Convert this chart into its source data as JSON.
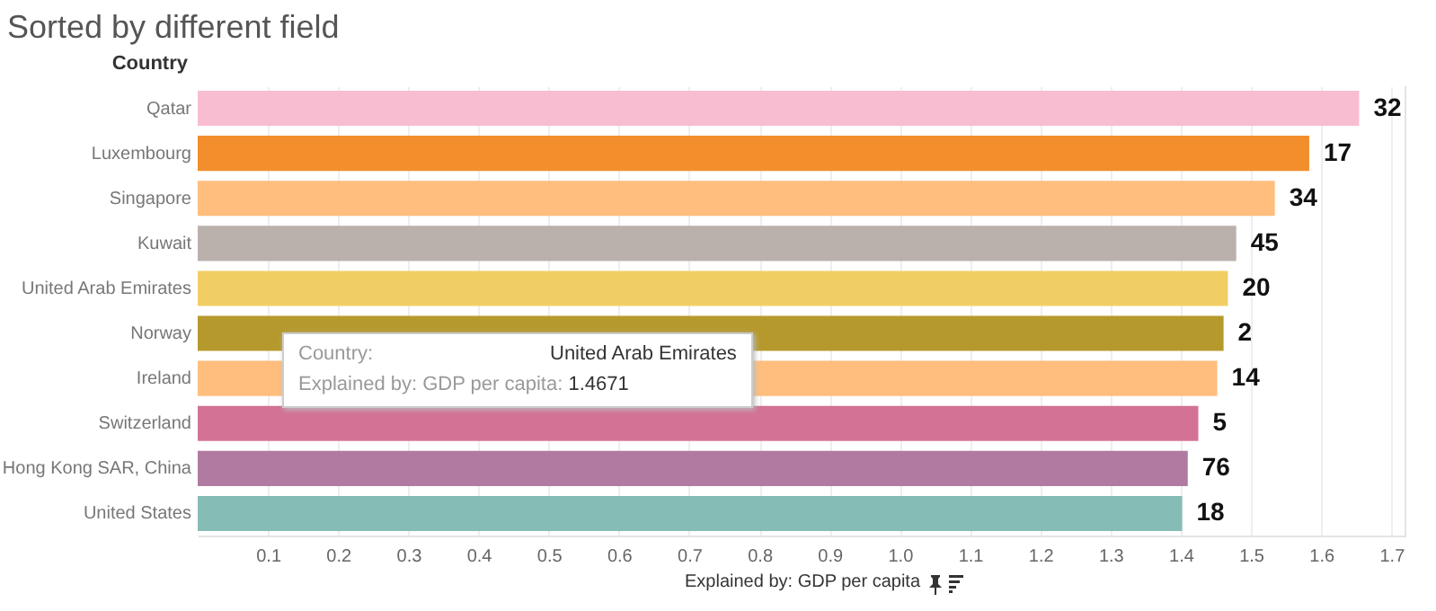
{
  "chart_data": {
    "type": "bar",
    "orientation": "horizontal",
    "title": "Sorted by different field",
    "ylabel": "Country",
    "xlabel": "Explained by: GDP per capita",
    "categories": [
      "Qatar",
      "Luxembourg",
      "Singapore",
      "Kuwait",
      "United Arab Emirates",
      "Norway",
      "Ireland",
      "Switzerland",
      "Hong Kong SAR, China",
      "United States"
    ],
    "values": [
      1.654,
      1.583,
      1.534,
      1.479,
      1.4671,
      1.461,
      1.452,
      1.425,
      1.41,
      1.402
    ],
    "colors": [
      "#f9bdd2",
      "#f28e2b",
      "#ffbe7d",
      "#bab0ac",
      "#f1ce63",
      "#b6992d",
      "#ffbe7d",
      "#d37295",
      "#b07aa1",
      "#86bcb6"
    ],
    "xlim": [
      0,
      1.72
    ],
    "xticks": [
      0.1,
      0.2,
      0.3,
      0.4,
      0.5,
      0.6,
      0.7,
      0.8,
      0.9,
      {
        "value": 1,
        "label": "1.0"
      },
      1.1,
      1.2,
      1.3,
      1.4,
      1.5,
      1.6,
      1.7
    ],
    "grid": "x",
    "legend": false,
    "annotations": [
      {
        "text": "32",
        "x": 1.654,
        "y": "Qatar"
      },
      {
        "text": "17",
        "x": 1.583,
        "y": "Luxembourg"
      },
      {
        "text": "34",
        "x": 1.534,
        "y": "Singapore"
      },
      {
        "text": "45",
        "x": 1.479,
        "y": "Kuwait"
      },
      {
        "text": "20",
        "x": 1.4671,
        "y": "United Arab Emirates"
      },
      {
        "text": "2",
        "x": 1.461,
        "y": "Norway"
      },
      {
        "text": "14",
        "x": 1.452,
        "y": "Ireland"
      },
      {
        "text": "5",
        "x": 1.425,
        "y": "Switzerland"
      },
      {
        "text": "76",
        "x": 1.41,
        "y": "Hong Kong SAR, China"
      },
      {
        "text": "18",
        "x": 1.402,
        "y": "United States"
      },
      "Country: United Arab Emirates",
      "Explained by: GDP per capita: 1.4671"
    ]
  }
}
